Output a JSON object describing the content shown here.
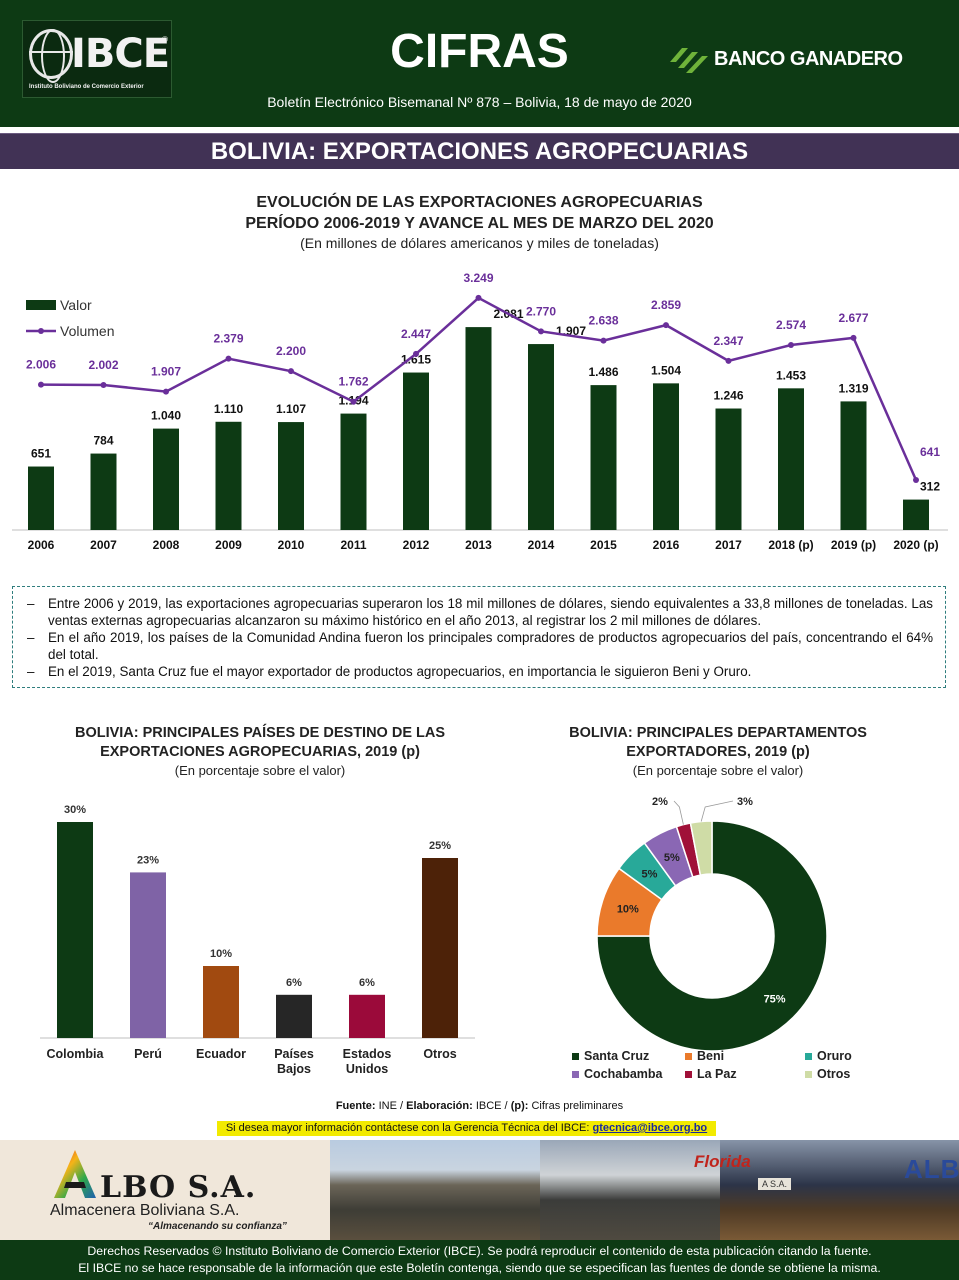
{
  "header": {
    "logo_text": "IBCE",
    "logo_reg": "®",
    "logo_subtitle": "Instituto Boliviano de Comercio Exterior",
    "brand_title": "CIFRAS",
    "bulletin": "Boletín Electrónico Bisemanal Nº 878 – Bolivia, 18 de mayo de 2020",
    "sponsor": "BANCO GANADERO"
  },
  "section_title": "BOLIVIA: EXPORTACIONES AGROPECUARIAS",
  "main_chart": {
    "title_line1": "EVOLUCIÓN DE LAS EXPORTACIONES AGROPECUARIAS",
    "title_line2": "PERÍODO 2006-2019 Y AVANCE AL MES DE MARZO DEL 2020",
    "subtitle": "(En millones de dólares americanos y miles de toneladas)"
  },
  "notes": [
    "Entre 2006 y 2019, las exportaciones agropecuarias superaron los 18 mil millones de dólares, siendo equivalentes a 33,8 millones de toneladas. Las ventas externas agropecuarias alcanzaron su máximo histórico en el año 2013, al registrar los 2 mil millones de dólares.",
    "En el año 2019, los países de la Comunidad Andina fueron los principales compradores de productos agropecuarios del país, concentrando el 64% del total.",
    "En el 2019, Santa Cruz fue el mayor exportador de productos agropecuarios, en importancia le siguieron Beni y Oruro."
  ],
  "note_dash": "–",
  "countries_chart": {
    "title_line1": "BOLIVIA: PRINCIPALES PAÍSES DE DESTINO DE LAS",
    "title_line2": "EXPORTACIONES AGROPECUARIAS, 2019 (p)",
    "subtitle": "(En porcentaje sobre el valor)"
  },
  "donut_chart": {
    "title_line1": "BOLIVIA: PRINCIPALES DEPARTAMENTOS",
    "title_line2": "EXPORTADORES, 2019 (p)",
    "subtitle": "(En porcentaje sobre el valor)"
  },
  "chart_data": [
    {
      "type": "bar+line",
      "categories": [
        "2006",
        "2007",
        "2008",
        "2009",
        "2010",
        "2011",
        "2012",
        "2013",
        "2014",
        "2015",
        "2016",
        "2017",
        "2018 (p)",
        "2019 (p)",
        "2020 (p)"
      ],
      "series": [
        {
          "name": "Valor",
          "type": "bar",
          "color": "#0d3a14",
          "values": [
            651,
            784,
            1040,
            1110,
            1107,
            1194,
            1615,
            2081,
            1907,
            1486,
            1504,
            1246,
            1453,
            1319,
            312
          ],
          "labels": [
            "651",
            "784",
            "1.040",
            "1.110",
            "1.107",
            "1.194",
            "1.615",
            "2.081",
            "1.907",
            "1.486",
            "1.504",
            "1.246",
            "1.453",
            "1.319",
            "312"
          ]
        },
        {
          "name": "Volumen",
          "type": "line",
          "color": "#6a2f9a",
          "values": [
            2006,
            2002,
            1907,
            2379,
            2200,
            1762,
            2447,
            3249,
            2770,
            2638,
            2859,
            2347,
            2574,
            2677,
            641
          ],
          "labels": [
            "2.006",
            "2.002",
            "1.907",
            "2.379",
            "2.200",
            "1.762",
            "2.447",
            "3.249",
            "2.770",
            "2.638",
            "2.859",
            "2.347",
            "2.574",
            "2.677",
            "641"
          ]
        }
      ],
      "legend": "top-left",
      "grid": false
    },
    {
      "type": "bar",
      "categories": [
        "Colombia",
        "Perú",
        "Ecuador",
        "Países Bajos",
        "Estados Unidos",
        "Otros"
      ],
      "values": [
        30,
        23,
        10,
        6,
        6,
        25
      ],
      "value_labels": [
        "30%",
        "23%",
        "10%",
        "6%",
        "6%",
        "25%"
      ],
      "colors": [
        "#0d3a14",
        "#7f63a6",
        "#a14a10",
        "#262626",
        "#9b0a3a",
        "#4d2208"
      ],
      "grid": false
    },
    {
      "type": "pie",
      "donut": true,
      "categories": [
        "Santa Cruz",
        "Beni",
        "Oruro",
        "Cochabamba",
        "La Paz",
        "Otros"
      ],
      "values": [
        75,
        10,
        5,
        5,
        2,
        3
      ],
      "value_labels": [
        "75%",
        "10%",
        "5%",
        "5%",
        "2%",
        "3%"
      ],
      "colors": [
        "#0d3a14",
        "#ea7a2b",
        "#28a999",
        "#8a67b4",
        "#a01038",
        "#cfdca6"
      ],
      "legend": "bottom"
    }
  ],
  "source": {
    "fuente_label": "Fuente:",
    "fuente_value": "INE /",
    "elab_label": "Elaboración:",
    "elab_value": "IBCE /",
    "p_label": "(p):",
    "p_value": "Cifras preliminares"
  },
  "contact": {
    "text": "Si desea mayor información contáctese con la Gerencia Técnica del IBCE:",
    "email": "gtecnica@ibce.org.bo"
  },
  "ad": {
    "name": "LBO S.A.",
    "full_name": "Almacenera Boliviana S.A.",
    "slogan": "“Almacenando su confianza”",
    "sign_florida": "Florida",
    "sign_albo": "ALBO",
    "truck_text": "A S.A."
  },
  "footer": {
    "line1": "Derechos Reservados © Instituto Boliviano de Comercio Exterior (IBCE). Se podrá reproducir el contenido de esta publicación citando la fuente.",
    "line2": "El IBCE no se hace responsable de la información que este Boletín contenga, siendo que se especifican las fuentes de donde se obtiene la misma."
  }
}
